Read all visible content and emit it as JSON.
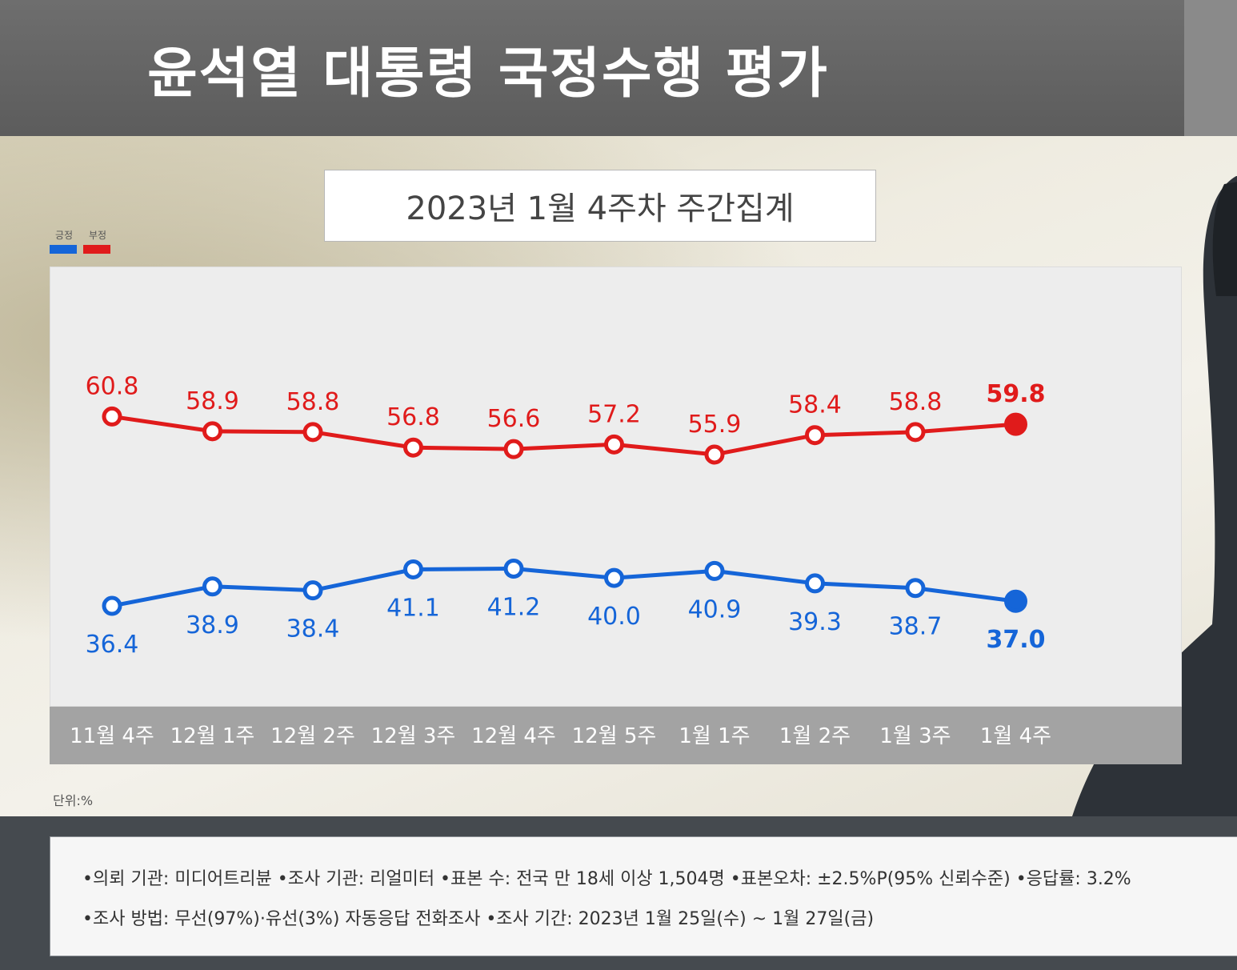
{
  "header": {
    "title": "윤석열 대통령 국정수행 평가"
  },
  "subtitle": "2023년 1월 4주차 주간집계",
  "legend": [
    {
      "label": "긍정",
      "color": "#1565d8"
    },
    {
      "label": "부정",
      "color": "#e01b1b"
    }
  ],
  "unit": "단위:%",
  "chart_data": {
    "type": "line",
    "title": "윤석열 대통령 국정수행 평가",
    "subtitle": "2023년 1월 4주차 주간집계",
    "categories": [
      "11월 4주",
      "12월 1주",
      "12월 2주",
      "12월 3주",
      "12월 4주",
      "12월 5주",
      "1월 1주",
      "1월 2주",
      "1월 3주",
      "1월 4주"
    ],
    "series": [
      {
        "name": "부정",
        "color": "#e01b1b",
        "values": [
          60.8,
          58.9,
          58.8,
          56.8,
          56.6,
          57.2,
          55.9,
          58.4,
          58.8,
          59.8
        ]
      },
      {
        "name": "긍정",
        "color": "#1565d8",
        "values": [
          36.4,
          38.9,
          38.4,
          41.1,
          41.2,
          40.0,
          40.9,
          39.3,
          38.7,
          37.0
        ]
      }
    ],
    "labels": {
      "부정": [
        "60.8",
        "58.9",
        "58.8",
        "56.8",
        "56.6",
        "57.2",
        "55.9",
        "58.4",
        "58.8",
        "59.8"
      ],
      "긍정": [
        "36.4",
        "38.9",
        "38.4",
        "41.1",
        "41.2",
        "40.0",
        "40.9",
        "39.3",
        "38.7",
        "37.0"
      ]
    },
    "xlabel": "",
    "ylabel": "",
    "unit": "%",
    "ylim": [
      33,
      66
    ],
    "grid": false
  },
  "notes": [
    "•의뢰 기관: 미디어트리뷴 •조사 기관: 리얼미터 •표본 수: 전국 만 18세 이상 1,504명 •표본오차: ±2.5%P(95% 신뢰수준) •응답률: 3.2%",
    "•조사 방법: 무선(97%)·유선(3%) 자동응답 전화조사 •조사 기간: 2023년 1월 25일(수) ~ 1월 27일(금)"
  ]
}
